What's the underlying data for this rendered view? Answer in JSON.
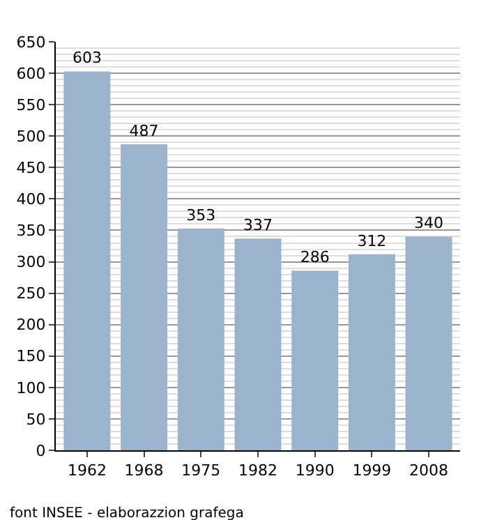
{
  "chart_data": {
    "type": "bar",
    "categories": [
      "1962",
      "1968",
      "1975",
      "1982",
      "1990",
      "1999",
      "2008"
    ],
    "values": [
      603,
      487,
      353,
      337,
      286,
      312,
      340
    ],
    "color": "#9bb3cd",
    "data_labels": true,
    "grid": "y",
    "ylim": [
      0,
      650
    ],
    "yticks": [
      0,
      50,
      100,
      150,
      200,
      250,
      300,
      350,
      400,
      450,
      500,
      550,
      600,
      650
    ],
    "annotations": [
      "font INSEE - elaborazzion grafega"
    ]
  }
}
